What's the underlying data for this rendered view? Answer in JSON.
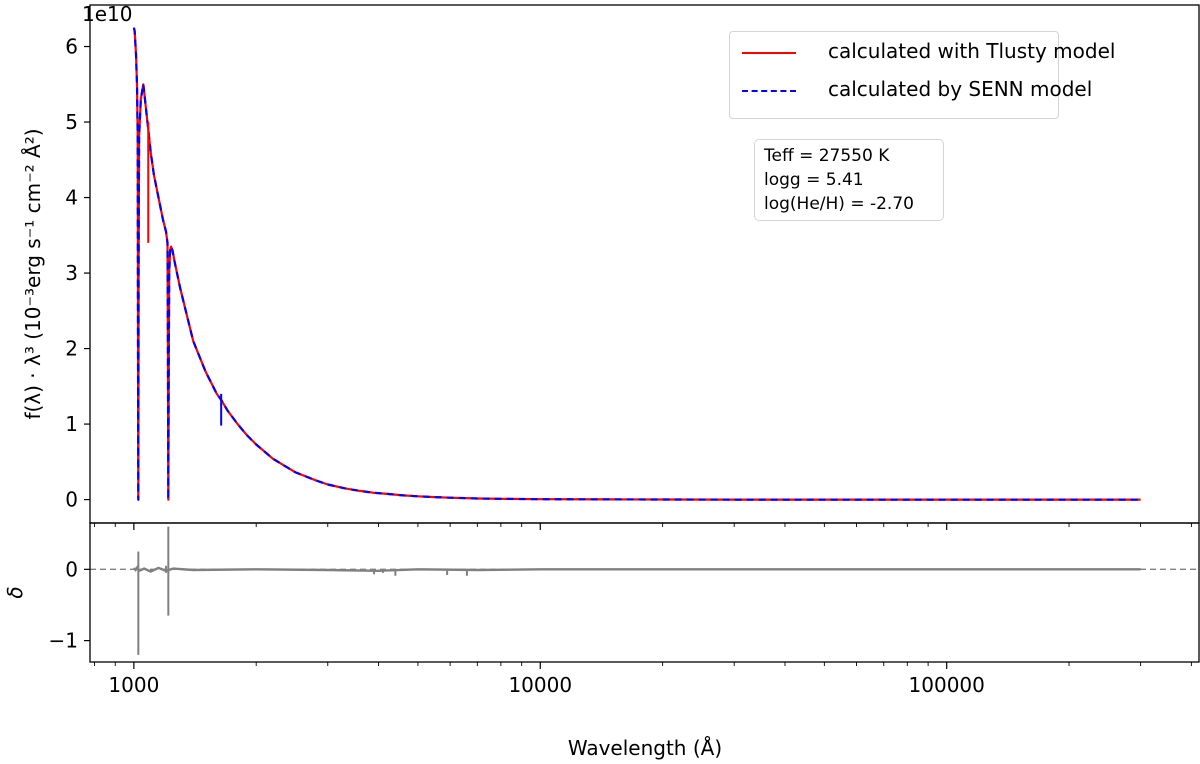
{
  "chart_data": [
    {
      "type": "line",
      "panel": "main",
      "x_scale": "log",
      "xlim": [
        780,
        420000
      ],
      "ylim": [
        -3100000000.0,
        65500000000.0
      ],
      "offset_text": "1e10",
      "ylabel": "f(λ) · λ³ (10⁻³erg s⁻¹ cm⁻² Å²)",
      "yticks": [
        {
          "value": 0,
          "label": "0"
        },
        {
          "value": 10000000000.0,
          "label": "1"
        },
        {
          "value": 20000000000.0,
          "label": "2"
        },
        {
          "value": 30000000000.0,
          "label": "3"
        },
        {
          "value": 40000000000.0,
          "label": "4"
        },
        {
          "value": 50000000000.0,
          "label": "5"
        },
        {
          "value": 60000000000.0,
          "label": "6"
        }
      ],
      "legend": {
        "placement": "top-right",
        "entries": [
          {
            "label": "calculated with Tlusty model",
            "color": "#ff0000",
            "style": "solid"
          },
          {
            "label": "calculated by SENN model",
            "color": "#0000ff",
            "style": "dashed"
          }
        ]
      },
      "annotation": [
        "Teff = 27550 K",
        "logg = 5.41",
        "log(He/H) = -2.70"
      ],
      "series": [
        {
          "name": "calculated with Tlusty model",
          "color": "#ff0000",
          "style": "solid",
          "x": [
            1000,
            1005,
            1012,
            1018,
            1022,
            1024,
            1025.7,
            1027,
            1030,
            1040,
            1055,
            1065,
            1075,
            1085,
            1100,
            1120,
            1150,
            1180,
            1200,
            1210,
            1213,
            1215.7,
            1218,
            1222,
            1228,
            1235,
            1245,
            1260,
            1300,
            1400,
            1500,
            1600,
            1640,
            1700,
            1800,
            1900,
            2000,
            2200,
            2500,
            2800,
            3000,
            3300,
            3600,
            3900,
            4200,
            4600,
            5000,
            5500,
            6000,
            7000,
            8000,
            10000,
            15000,
            20000,
            30000,
            50000,
            100000,
            200000,
            300000
          ],
          "y": [
            62500000000.0,
            62000000000.0,
            59000000000.0,
            55000000000.0,
            48000000000.0,
            20000000000.0,
            0.0,
            30000000000.0,
            48000000000.0,
            53000000000.0,
            55000000000.0,
            53000000000.0,
            51000000000.0,
            49000000000.0,
            46000000000.0,
            43000000000.0,
            40000000000.0,
            37000000000.0,
            35500000000.0,
            34000000000.0,
            20000000000.0,
            0.0,
            15000000000.0,
            30000000000.0,
            33000000000.0,
            33500000000.0,
            33000000000.0,
            31500000000.0,
            28000000000.0,
            21000000000.0,
            17000000000.0,
            14000000000.0,
            13200000000.0,
            11800000000.0,
            10000000000.0,
            8500000000.0,
            7300000000.0,
            5400000000.0,
            3600000000.0,
            2550000000.0,
            2000000000.0,
            1500000000.0,
            1150000000.0,
            900000000.0,
            750000000.0,
            560000000.0,
            440000000.0,
            330000000.0,
            250000000.0,
            150000000.0,
            100000000.0,
            50000000.0,
            20000000.0,
            10000000.0,
            4000000.0,
            1500000.0,
            500000.0,
            200000.0,
            100000.0
          ]
        },
        {
          "name": "calculated by SENN model",
          "color": "#0000ff",
          "style": "dashed",
          "x": [
            1000,
            1005,
            1012,
            1018,
            1022,
            1024,
            1025.7,
            1027,
            1030,
            1040,
            1055,
            1065,
            1075,
            1085,
            1100,
            1120,
            1150,
            1180,
            1200,
            1210,
            1213,
            1215.7,
            1218,
            1222,
            1228,
            1235,
            1245,
            1260,
            1300,
            1400,
            1500,
            1600,
            1640,
            1700,
            1800,
            1900,
            2000,
            2200,
            2500,
            2800,
            3000,
            3300,
            3600,
            3900,
            4200,
            4600,
            5000,
            5500,
            6000,
            7000,
            8000,
            10000,
            15000,
            20000,
            30000,
            50000,
            100000,
            200000,
            300000
          ],
          "y": [
            62500000000.0,
            62000000000.0,
            59000000000.0,
            55000000000.0,
            48000000000.0,
            20000000000.0,
            0.0,
            30000000000.0,
            48000000000.0,
            53000000000.0,
            55000000000.0,
            53000000000.0,
            51000000000.0,
            49000000000.0,
            46000000000.0,
            43000000000.0,
            40000000000.0,
            37000000000.0,
            35500000000.0,
            34000000000.0,
            20000000000.0,
            0.0,
            15000000000.0,
            30000000000.0,
            33000000000.0,
            33500000000.0,
            33000000000.0,
            31500000000.0,
            28000000000.0,
            21000000000.0,
            17000000000.0,
            14000000000.0,
            13200000000.0,
            11800000000.0,
            10000000000.0,
            8500000000.0,
            7300000000.0,
            5400000000.0,
            3600000000.0,
            2550000000.0,
            2000000000.0,
            1500000000.0,
            1150000000.0,
            900000000.0,
            750000000.0,
            560000000.0,
            440000000.0,
            330000000.0,
            250000000.0,
            150000000.0,
            100000000.0,
            50000000.0,
            20000000.0,
            10000000.0,
            4000000.0,
            1500000.0,
            500000.0,
            200000.0,
            100000.0
          ]
        }
      ],
      "spikes": [
        {
          "x": 1085,
          "y_from": 50000000000.0,
          "y_to": 34000000000.0,
          "color": "#ff0000"
        },
        {
          "x": 1640,
          "y_from": 14000000000.0,
          "y_to": 9800000000.0,
          "color": "#0000ff"
        }
      ]
    },
    {
      "type": "line",
      "panel": "residual",
      "x_scale": "log",
      "xlim": [
        780,
        420000
      ],
      "ylim": [
        -1.3,
        0.65
      ],
      "ylabel": "δ",
      "xlabel": "Wavelength (Å)",
      "reference_line": {
        "y": 0,
        "color": "#808080",
        "style": "dashed"
      },
      "yticks": [
        {
          "value": -1,
          "label": "−1"
        },
        {
          "value": 0,
          "label": "0"
        }
      ],
      "xticks": [
        {
          "value": 1000,
          "label": "1000"
        },
        {
          "value": 10000,
          "label": "10000"
        },
        {
          "value": 100000,
          "label": "100000"
        }
      ],
      "series": [
        {
          "color": "#808080",
          "x": [
            1000,
            1010,
            1020,
            1030,
            1060,
            1100,
            1150,
            1200,
            1250,
            1400,
            2000,
            3000,
            4000,
            5000,
            7000,
            10000,
            20000,
            50000,
            100000,
            200000,
            300000
          ],
          "y": [
            0.02,
            -0.01,
            0.03,
            -0.02,
            0.01,
            -0.03,
            0.02,
            -0.02,
            0.01,
            -0.01,
            0.0,
            -0.01,
            -0.02,
            0.0,
            -0.01,
            0.0,
            0.0,
            0.0,
            0.0,
            0.0,
            0.0
          ]
        }
      ],
      "spikes": [
        {
          "x": 1025.7,
          "y_from": 0.25,
          "y_to": -1.2
        },
        {
          "x": 1215.7,
          "y_from": 0.6,
          "y_to": -0.65
        },
        {
          "x": 1200,
          "y_from": 0.05,
          "y_to": -0.05
        },
        {
          "x": 3900,
          "y_from": 0.0,
          "y_to": -0.07
        },
        {
          "x": 4100,
          "y_from": 0.0,
          "y_to": -0.05
        },
        {
          "x": 4400,
          "y_from": 0.0,
          "y_to": -0.09
        },
        {
          "x": 5900,
          "y_from": 0.0,
          "y_to": -0.08
        },
        {
          "x": 6600,
          "y_from": 0.0,
          "y_to": -0.09
        }
      ]
    }
  ]
}
